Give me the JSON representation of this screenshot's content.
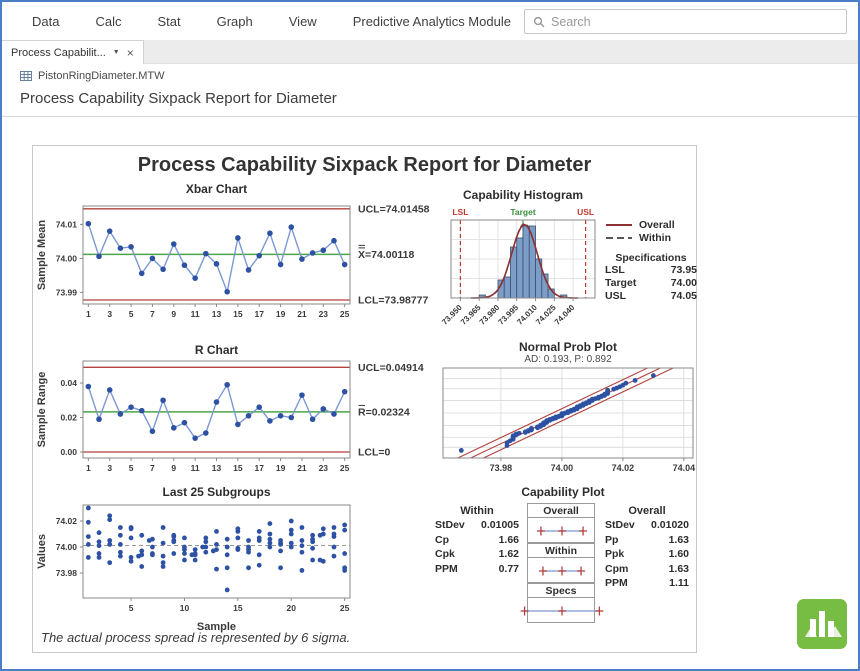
{
  "menu": {
    "items": [
      "Data",
      "Calc",
      "Stat",
      "Graph",
      "View",
      "Predictive Analytics Module"
    ],
    "search_placeholder": "Search"
  },
  "tab": {
    "label": "Process Capabilit...",
    "dropdown_icon": "▼",
    "close_icon": "×"
  },
  "document": {
    "worksheet": "PistonRingDiameter.MTW",
    "title": "Process Capability Sixpack Report for Diameter"
  },
  "report": {
    "title": "Process Capability Sixpack Report for Diameter",
    "footnote": "The actual process spread is represented by 6 sigma."
  },
  "colors": {
    "accent_border": "#4a7ec7",
    "limit_red": "#b2423e",
    "center_green": "#4aa54a",
    "point_blue": "#2d51a3",
    "line_blue": "#7b98d4",
    "bar_fill": "#7d9dc9",
    "bar_stroke": "#3d4f6e",
    "overall_curve": "#8b3232",
    "within_curve": "#555555",
    "logo_green": "#77bc43"
  },
  "chart_data": [
    {
      "type": "line",
      "title": "Xbar Chart",
      "ylabel": "Sample Mean",
      "ucl": 74.01458,
      "center": 74.00118,
      "lcl": 73.98777,
      "limit_labels": {
        "ucl": "UCL=74.01458",
        "center": "X̿=74.00118",
        "lcl": "LCL=73.98777"
      },
      "yticks": [
        {
          "v": 74.01,
          "label": "74.01"
        },
        {
          "v": 74.0,
          "label": "74.00"
        },
        {
          "v": 73.99,
          "label": "73.99"
        }
      ],
      "xticks": [
        1,
        3,
        5,
        7,
        9,
        11,
        13,
        15,
        17,
        19,
        21,
        23,
        25
      ],
      "ylim": [
        73.9866,
        74.0154
      ],
      "values": [
        74.0102,
        74.0006,
        74.008,
        74.003,
        74.0034,
        73.9956,
        74.0,
        73.9968,
        74.0042,
        73.998,
        73.9942,
        74.0014,
        73.9984,
        73.9902,
        74.006,
        73.9966,
        74.0008,
        74.0074,
        73.9982,
        74.0092,
        73.9998,
        74.0016,
        74.0024,
        74.0052,
        73.9982
      ]
    },
    {
      "type": "line",
      "title": "R Chart",
      "ylabel": "Sample Range",
      "ucl": 0.04914,
      "center": 0.02324,
      "lcl": 0,
      "limit_labels": {
        "ucl": "UCL=0.04914",
        "center": "R̄=0.02324",
        "lcl": "LCL=0"
      },
      "yticks": [
        {
          "v": 0.04,
          "label": "0.04"
        },
        {
          "v": 0.02,
          "label": "0.02"
        },
        {
          "v": 0,
          "label": "0.00"
        }
      ],
      "xticks": [
        1,
        3,
        5,
        7,
        9,
        11,
        13,
        15,
        17,
        19,
        21,
        23,
        25
      ],
      "ylim": [
        -0.0035,
        0.0528
      ],
      "values": [
        0.038,
        0.019,
        0.036,
        0.022,
        0.026,
        0.024,
        0.012,
        0.03,
        0.014,
        0.017,
        0.008,
        0.011,
        0.029,
        0.039,
        0.016,
        0.021,
        0.026,
        0.018,
        0.021,
        0.02,
        0.033,
        0.019,
        0.025,
        0.022,
        0.035
      ]
    },
    {
      "type": "histogram",
      "title": "Capability Histogram",
      "bin_width": 0.005,
      "bin_centers": [
        73.9675,
        73.9725,
        73.9775,
        73.9825,
        73.9875,
        73.9925,
        73.9975,
        74.0025,
        74.0075,
        74.0125,
        74.0175,
        74.0225,
        74.0275,
        74.0325
      ],
      "counts": [
        1,
        0,
        0,
        6,
        7,
        17,
        20,
        24,
        24,
        13,
        8,
        3,
        0,
        1
      ],
      "xlim": [
        73.9425,
        74.0575
      ],
      "xticks": [
        {
          "v": 73.95,
          "label": "73.950"
        },
        {
          "v": 73.965,
          "label": "73.965"
        },
        {
          "v": 73.98,
          "label": "73.980"
        },
        {
          "v": 73.995,
          "label": "73.995"
        },
        {
          "v": 74.01,
          "label": "74.010"
        },
        {
          "v": 74.025,
          "label": "74.025"
        },
        {
          "v": 74.04,
          "label": "74.040"
        }
      ],
      "specs": {
        "lsl": {
          "v": 73.95,
          "label": "LSL"
        },
        "target": {
          "v": 74.0,
          "label": "Target"
        },
        "usl": {
          "v": 74.05,
          "label": "USL"
        }
      },
      "curves": {
        "mean": 74.00118,
        "overall_sd": 0.0102,
        "within_sd": 0.01005,
        "n": 125
      },
      "legend": {
        "entries": [
          {
            "label": "Overall",
            "style": "solid"
          },
          {
            "label": "Within",
            "style": "dashed"
          }
        ]
      },
      "specifications": {
        "title": "Specifications",
        "rows": [
          {
            "label": "LSL",
            "value": "73.95"
          },
          {
            "label": "Target",
            "value": "74.00"
          },
          {
            "label": "USL",
            "value": "74.05"
          }
        ]
      }
    },
    {
      "type": "scatter",
      "title": "Normal Prob Plot",
      "subtitle": "AD: 0.193, P: 0.892",
      "xlim": [
        73.961,
        74.043
      ],
      "zlim": [
        -3.05,
        3.05
      ],
      "xticks": [
        {
          "v": 73.98,
          "label": "73.98"
        },
        {
          "v": 74.0,
          "label": "74.00"
        },
        {
          "v": 74.02,
          "label": "74.02"
        },
        {
          "v": 74.04,
          "label": "74.04"
        }
      ],
      "grid_z": [
        -2.326,
        -1.645,
        -0.842,
        0,
        0.842,
        1.645,
        2.326
      ],
      "fit": {
        "mean": 74.00118,
        "sd": 0.0102,
        "band_dx": 0.0042
      },
      "uses": "subgroup-values"
    },
    {
      "type": "scatter",
      "title": "Last 25 Subgroups",
      "xlabel": "Sample",
      "ylabel": "Values",
      "yticks": [
        {
          "v": 74.02,
          "label": "74.02"
        },
        {
          "v": 74.0,
          "label": "74.00"
        },
        {
          "v": 73.98,
          "label": "73.98"
        }
      ],
      "xticks": [
        5,
        10,
        15,
        20,
        25
      ],
      "ylim": [
        73.9608,
        74.0323
      ],
      "mean_line": 74.00118,
      "samples": [
        [
          74.03,
          74.002,
          74.019,
          73.992,
          74.008
        ],
        [
          73.995,
          73.992,
          74.001,
          74.011,
          74.004
        ],
        [
          73.988,
          74.024,
          74.021,
          74.005,
          74.002
        ],
        [
          74.002,
          73.996,
          73.993,
          74.015,
          74.009
        ],
        [
          73.992,
          74.007,
          74.015,
          73.989,
          74.014
        ],
        [
          74.009,
          73.994,
          73.997,
          73.985,
          73.993
        ],
        [
          73.995,
          74.006,
          73.994,
          74.0,
          74.005
        ],
        [
          73.985,
          74.003,
          73.993,
          74.015,
          73.988
        ],
        [
          74.008,
          73.995,
          74.009,
          74.005,
          74.004
        ],
        [
          73.998,
          74.0,
          73.99,
          74.007,
          73.995
        ],
        [
          73.994,
          73.998,
          73.994,
          73.995,
          73.99
        ],
        [
          74.004,
          74.0,
          74.007,
          74.0,
          73.996
        ],
        [
          73.983,
          74.002,
          73.998,
          73.997,
          74.012
        ],
        [
          74.006,
          73.967,
          73.994,
          74.0,
          73.984
        ],
        [
          74.012,
          74.014,
          73.998,
          73.999,
          74.007
        ],
        [
          74.0,
          73.984,
          74.005,
          73.998,
          73.996
        ],
        [
          73.994,
          74.012,
          73.986,
          74.005,
          74.007
        ],
        [
          74.006,
          74.01,
          74.018,
          74.003,
          74.0
        ],
        [
          73.984,
          74.002,
          74.003,
          74.005,
          73.997
        ],
        [
          74.0,
          74.01,
          74.013,
          74.02,
          74.003
        ],
        [
          73.982,
          74.001,
          74.015,
          74.005,
          73.996
        ],
        [
          74.004,
          73.999,
          73.99,
          74.006,
          74.009
        ],
        [
          74.01,
          73.989,
          73.99,
          74.009,
          74.014
        ],
        [
          74.015,
          74.008,
          73.993,
          74.0,
          74.01
        ],
        [
          73.982,
          73.984,
          73.995,
          74.017,
          74.013
        ]
      ]
    },
    {
      "type": "capability",
      "title": "Capability Plot",
      "within": {
        "title": "Within",
        "rows": [
          {
            "label": "StDev",
            "value": "0.01005"
          },
          {
            "label": "Cp",
            "value": "1.66"
          },
          {
            "label": "Cpk",
            "value": "1.62"
          },
          {
            "label": "PPM",
            "value": "0.77"
          }
        ]
      },
      "overall": {
        "title": "Overall",
        "rows": [
          {
            "label": "StDev",
            "value": "0.01020"
          },
          {
            "label": "Pp",
            "value": "1.63"
          },
          {
            "label": "Ppk",
            "value": "1.60"
          },
          {
            "label": "Cpm",
            "value": "1.63"
          },
          {
            "label": "PPM",
            "value": "1.11"
          }
        ]
      },
      "intervals": [
        {
          "label": "Overall",
          "span": [
            0.19,
            0.81
          ]
        },
        {
          "label": "Within",
          "span": [
            0.22,
            0.78
          ]
        },
        {
          "label": "Specs",
          "span": [
            -0.05,
            1.05
          ]
        }
      ]
    }
  ]
}
